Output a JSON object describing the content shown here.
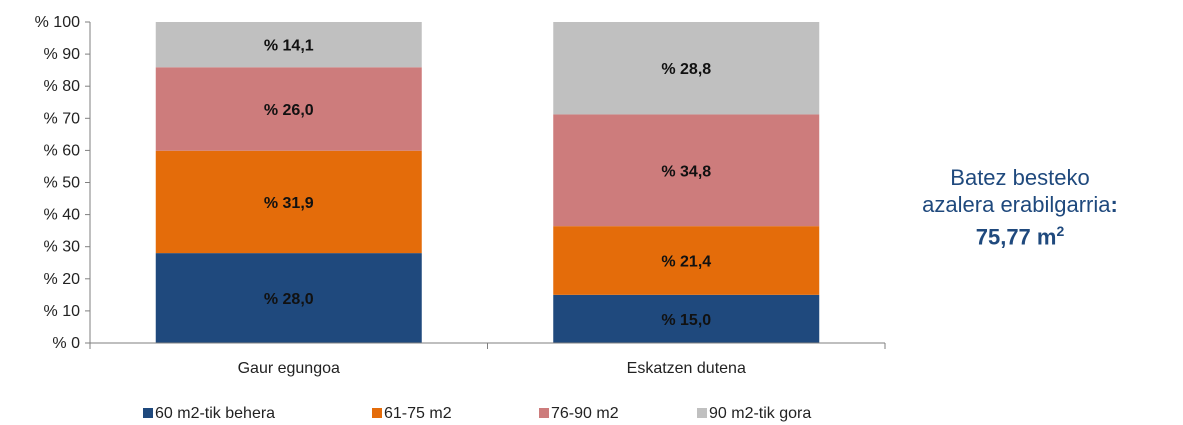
{
  "chart_data": {
    "type": "bar",
    "stacked": true,
    "categories": [
      "Gaur egungoa",
      "Eskatzen dutena"
    ],
    "series": [
      {
        "name": "60 m2-tik behera",
        "values": [
          28.0,
          15.0
        ],
        "labels": [
          "% 28,0",
          "% 15,0"
        ],
        "color": "#1f497d"
      },
      {
        "name": "61-75 m2",
        "values": [
          31.9,
          21.4
        ],
        "labels": [
          "% 31,9",
          "% 21,4"
        ],
        "color": "#e46c0a"
      },
      {
        "name": "76-90 m2",
        "values": [
          26.0,
          34.8
        ],
        "labels": [
          "% 26,0",
          "% 34,8"
        ],
        "color": "#cd7c7c"
      },
      {
        "name": "90 m2-tik gora",
        "values": [
          14.1,
          28.8
        ],
        "labels": [
          "% 14,1",
          "% 28,8"
        ],
        "color": "#c0c0c0"
      }
    ],
    "ylim": [
      0,
      100
    ],
    "yticks": [
      0,
      10,
      20,
      30,
      40,
      50,
      60,
      70,
      80,
      90,
      100
    ],
    "ytick_labels": [
      "% 0",
      "% 10",
      "% 20",
      "% 30",
      "% 40",
      "% 50",
      "% 60",
      "% 70",
      "% 80",
      "% 90",
      "% 100"
    ],
    "legend_position": "bottom",
    "grid": false
  },
  "annotation": {
    "line1": "Batez besteko",
    "line2": "azalera erabilgarria",
    "colon": ":",
    "value": "75,77 m",
    "superscript": "2"
  }
}
